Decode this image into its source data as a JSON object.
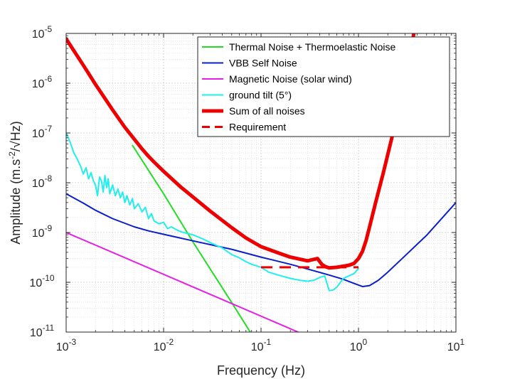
{
  "chart_data": {
    "type": "line",
    "xscale": "log",
    "yscale": "log",
    "xlim": [
      0.001,
      10
    ],
    "ylim": [
      1e-11,
      1e-05
    ],
    "xlabel": "Frequency (Hz)",
    "ylabel": "Amplitude (m.s-2/√Hz)",
    "ylabel_parts": {
      "pre": "Amplitude (m.s",
      "sup": "-2",
      "post": "/√Hz)"
    },
    "grid": true,
    "minor_grid": true,
    "legend_position": "top-right",
    "x_ticks": [
      {
        "value": 0.001,
        "base": "10",
        "exp": "-3"
      },
      {
        "value": 0.01,
        "base": "10",
        "exp": "-2"
      },
      {
        "value": 0.1,
        "base": "10",
        "exp": "-1"
      },
      {
        "value": 1,
        "base": "10",
        "exp": "0"
      },
      {
        "value": 10,
        "base": "10",
        "exp": "1"
      }
    ],
    "y_ticks": [
      {
        "value": 1e-11,
        "base": "10",
        "exp": "-11"
      },
      {
        "value": 1e-10,
        "base": "10",
        "exp": "-10"
      },
      {
        "value": 1e-09,
        "base": "10",
        "exp": "-9"
      },
      {
        "value": 1e-08,
        "base": "10",
        "exp": "-8"
      },
      {
        "value": 1e-07,
        "base": "10",
        "exp": "-7"
      },
      {
        "value": 1e-06,
        "base": "10",
        "exp": "-6"
      },
      {
        "value": 1e-05,
        "base": "10",
        "exp": "-5"
      }
    ],
    "series": [
      {
        "name": "Thermal Noise + Thermoelastic Noise",
        "color": "#22dd22",
        "style": "solid",
        "width": 2,
        "x": [
          0.0048,
          0.01,
          0.02,
          0.05,
          0.078
        ],
        "y": [
          5.6e-08,
          6e-09,
          6.5e-10,
          3.9e-11,
          9.8e-12
        ]
      },
      {
        "name": "VBB Self Noise",
        "color": "#0a1fcc",
        "style": "solid",
        "width": 2,
        "x": [
          0.001,
          0.0015,
          0.002,
          0.003,
          0.005,
          0.007,
          0.01,
          0.02,
          0.05,
          0.1,
          0.2,
          0.3,
          0.5,
          0.7,
          0.9,
          1.1,
          1.3,
          1.6,
          2,
          3,
          5,
          10
        ],
        "y": [
          6e-09,
          3.9e-09,
          2.8e-09,
          1.9e-09,
          1.3e-09,
          1.08e-09,
          9.2e-10,
          6.8e-10,
          4.6e-10,
          3.2e-10,
          2.3e-10,
          1.85e-10,
          1.4e-10,
          1.15e-10,
          9.5e-11,
          8.2e-11,
          8.6e-11,
          1.1e-10,
          1.6e-10,
          3.4e-10,
          8.8e-10,
          4e-09
        ]
      },
      {
        "name": "Magnetic Noise (solar wind)",
        "color": "#e61ee6",
        "style": "solid",
        "width": 2,
        "x": [
          0.001,
          0.24
        ],
        "y": [
          1e-09,
          1e-11
        ]
      },
      {
        "name": "ground tilt (5°)",
        "color": "#22eeee",
        "style": "solid",
        "width": 2,
        "x": [
          0.001,
          0.0011,
          0.0012,
          0.0013,
          0.0014,
          0.0015,
          0.0016,
          0.0017,
          0.0018,
          0.0019,
          0.002,
          0.0021,
          0.0022,
          0.0023,
          0.0024,
          0.0025,
          0.0026,
          0.0027,
          0.0028,
          0.003,
          0.0032,
          0.0034,
          0.0036,
          0.0038,
          0.004,
          0.0042,
          0.0045,
          0.0048,
          0.005,
          0.0055,
          0.006,
          0.0065,
          0.007,
          0.0075,
          0.008,
          0.009,
          0.01,
          0.011,
          0.012,
          0.014,
          0.016,
          0.02,
          0.025,
          0.03,
          0.035,
          0.04,
          0.05,
          0.06,
          0.07,
          0.08,
          0.1,
          0.12,
          0.15,
          0.2,
          0.25,
          0.3,
          0.35,
          0.4,
          0.45,
          0.5,
          0.55,
          0.6,
          0.7,
          0.8,
          0.9,
          1.0
        ],
        "y": [
          1e-07,
          6.5e-08,
          4e-08,
          3e-08,
          2.2e-08,
          1.5e-08,
          2e-08,
          1.2e-08,
          1.6e-08,
          1.1e-08,
          9e-09,
          5.5e-09,
          1.3e-08,
          1.1e-08,
          6.5e-09,
          1.4e-08,
          8e-09,
          1.2e-08,
          6e-09,
          9e-09,
          5.5e-09,
          7.5e-09,
          5e-09,
          6.5e-09,
          4e-09,
          5.5e-09,
          3.6e-09,
          4.8e-09,
          3e-09,
          3.8e-09,
          2.6e-09,
          3.2e-09,
          1.9e-09,
          2.4e-09,
          1.7e-09,
          1.5e-09,
          1.6e-09,
          1.2e-09,
          1.3e-09,
          1.1e-09,
          1e-09,
          9e-10,
          7.5e-10,
          6.3e-10,
          5.5e-10,
          4.9e-10,
          3.6e-10,
          3.1e-10,
          2.6e-10,
          2.3e-10,
          2e-10,
          1.6e-10,
          1.4e-10,
          1.2e-10,
          1.1e-10,
          1.05e-10,
          1.1e-10,
          1.25e-10,
          1.35e-10,
          6.8e-11,
          7e-11,
          8e-11,
          1.2e-10,
          1.35e-10,
          1.5e-10,
          1.9e-10
        ]
      },
      {
        "name": "Sum of all noises",
        "color": "#ee0000",
        "style": "solid",
        "width": 5,
        "x": [
          0.001,
          0.0015,
          0.002,
          0.003,
          0.004,
          0.005,
          0.006,
          0.007,
          0.008,
          0.01,
          0.015,
          0.02,
          0.03,
          0.05,
          0.07,
          0.1,
          0.15,
          0.2,
          0.3,
          0.38,
          0.42,
          0.46,
          0.5,
          0.6,
          0.7,
          0.8,
          0.9,
          1.0,
          1.1,
          1.2,
          1.3,
          1.5,
          1.8,
          2.2,
          2.7,
          3.2,
          3.7
        ],
        "y": [
          7.8e-06,
          2.3e-06,
          9.5e-07,
          2.9e-07,
          1.3e-07,
          7.5e-08,
          4.8e-08,
          3.4e-08,
          2.6e-08,
          1.7e-08,
          8.2e-09,
          5.2e-09,
          2.7e-09,
          1.25e-09,
          7.8e-10,
          5.2e-10,
          3.9e-10,
          3.2e-10,
          2.7e-10,
          3e-10,
          2.3e-10,
          2.05e-10,
          1.95e-10,
          2e-10,
          2.1e-10,
          2.2e-10,
          2.4e-10,
          3e-10,
          4.2e-10,
          7e-10,
          1.3e-09,
          4e-09,
          1.6e-08,
          8e-08,
          4e-07,
          1.8e-06,
          1e-05
        ]
      },
      {
        "name": "Requirement",
        "color": "#ee0000",
        "style": "dashed",
        "width": 3,
        "x": [
          0.1,
          1.0
        ],
        "y": [
          2e-10,
          2e-10
        ]
      }
    ]
  }
}
